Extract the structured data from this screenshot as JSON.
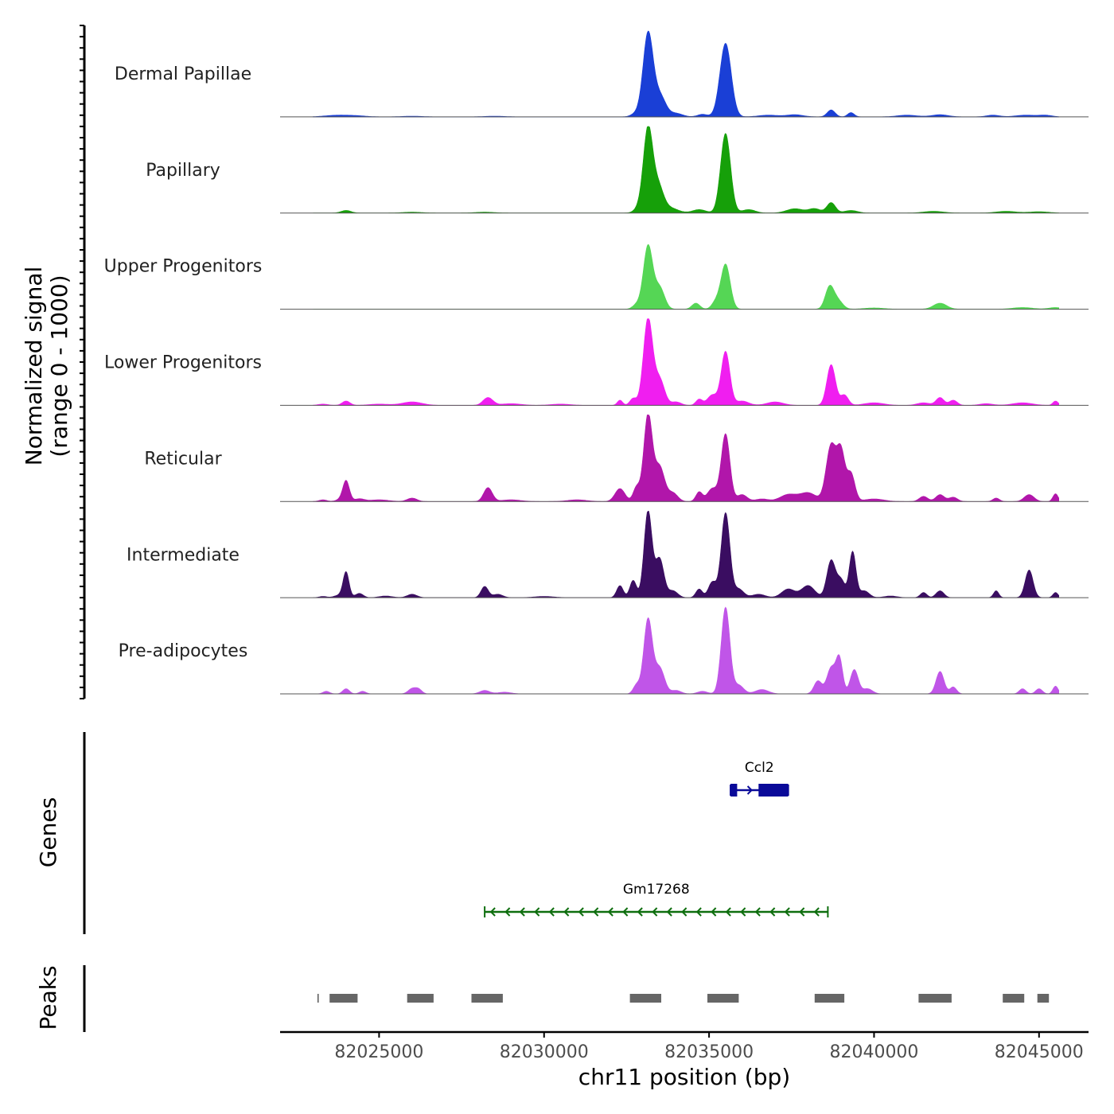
{
  "chart_data": {
    "type": "area",
    "chromosome": "chr11",
    "xlim": [
      82022000,
      82046500
    ],
    "xlabel": "chr11 position (bp)",
    "x_ticks": [
      82025000,
      82030000,
      82035000,
      82040000,
      82045000
    ],
    "x_tick_labels": [
      "82025000",
      "82030000",
      "82035000",
      "82040000",
      "82045000"
    ],
    "coverage": {
      "ylabel_line1": "Normalized signal",
      "ylabel_line2": "(range 0 - 1000)",
      "ylim": [
        0,
        1000
      ],
      "series": [
        {
          "name": "Dermal Papillae",
          "color": "#1a3fd6",
          "peaks": [
            [
              82023700,
              18,
              350
            ],
            [
              82024300,
              12,
              300
            ],
            [
              82026000,
              8,
              300
            ],
            [
              82028500,
              8,
              300
            ],
            [
              82032800,
              40,
              150
            ],
            [
              82033150,
              950,
              150
            ],
            [
              82033500,
              250,
              180
            ],
            [
              82034000,
              40,
              200
            ],
            [
              82034800,
              30,
              150
            ],
            [
              82035500,
              850,
              170
            ],
            [
              82036800,
              20,
              300
            ],
            [
              82037600,
              25,
              250
            ],
            [
              82038700,
              80,
              120
            ],
            [
              82039300,
              50,
              100
            ],
            [
              82041000,
              20,
              300
            ],
            [
              82042000,
              25,
              250
            ],
            [
              82043600,
              20,
              200
            ],
            [
              82044600,
              20,
              300
            ],
            [
              82045200,
              18,
              200
            ]
          ]
        },
        {
          "name": "Papillary",
          "color": "#16a009",
          "peaks": [
            [
              82024000,
              30,
              150
            ],
            [
              82026000,
              10,
              300
            ],
            [
              82028200,
              10,
              300
            ],
            [
              82032900,
              60,
              150
            ],
            [
              82033150,
              950,
              140
            ],
            [
              82033450,
              300,
              160
            ],
            [
              82033800,
              60,
              250
            ],
            [
              82034700,
              40,
              200
            ],
            [
              82035500,
              920,
              150
            ],
            [
              82036200,
              40,
              200
            ],
            [
              82037600,
              50,
              250
            ],
            [
              82038200,
              50,
              180
            ],
            [
              82038700,
              120,
              130
            ],
            [
              82039300,
              30,
              200
            ],
            [
              82041800,
              20,
              300
            ],
            [
              82044000,
              20,
              300
            ],
            [
              82045000,
              15,
              300
            ]
          ]
        },
        {
          "name": "Upper Progenitors",
          "color": "#55d655",
          "peaks": [
            [
              82032800,
              50,
              120
            ],
            [
              82033150,
              730,
              140
            ],
            [
              82033500,
              250,
              150
            ],
            [
              82034600,
              70,
              120
            ],
            [
              82035200,
              80,
              120
            ],
            [
              82035500,
              520,
              140
            ],
            [
              82038650,
              250,
              130
            ],
            [
              82038900,
              100,
              150
            ],
            [
              82040000,
              15,
              300
            ],
            [
              82042000,
              70,
              200
            ],
            [
              82044500,
              20,
              300
            ],
            [
              82045500,
              20,
              200
            ]
          ]
        },
        {
          "name": "Lower Progenitors",
          "color": "#f01ef0",
          "peaks": [
            [
              82023300,
              15,
              150
            ],
            [
              82024000,
              50,
              120
            ],
            [
              82025000,
              15,
              300
            ],
            [
              82026000,
              40,
              300
            ],
            [
              82028300,
              90,
              150
            ],
            [
              82029000,
              20,
              300
            ],
            [
              82030500,
              15,
              300
            ],
            [
              82032300,
              60,
              80
            ],
            [
              82032700,
              80,
              100
            ],
            [
              82033150,
              1000,
              140
            ],
            [
              82033500,
              300,
              150
            ],
            [
              82034000,
              40,
              150
            ],
            [
              82034700,
              70,
              100
            ],
            [
              82035100,
              120,
              150
            ],
            [
              82035500,
              620,
              130
            ],
            [
              82036000,
              50,
              200
            ],
            [
              82037000,
              40,
              250
            ],
            [
              82038700,
              470,
              130
            ],
            [
              82039100,
              120,
              120
            ],
            [
              82040000,
              30,
              300
            ],
            [
              82041500,
              30,
              200
            ],
            [
              82042000,
              90,
              120
            ],
            [
              82042400,
              60,
              120
            ],
            [
              82043400,
              20,
              200
            ],
            [
              82044500,
              30,
              300
            ],
            [
              82045500,
              50,
              80
            ]
          ]
        },
        {
          "name": "Reticular",
          "color": "#b116aa",
          "peaks": [
            [
              82023300,
              20,
              120
            ],
            [
              82023800,
              20,
              120
            ],
            [
              82024000,
              240,
              100
            ],
            [
              82024400,
              30,
              150
            ],
            [
              82025000,
              20,
              300
            ],
            [
              82026000,
              40,
              150
            ],
            [
              82028300,
              160,
              130
            ],
            [
              82029000,
              20,
              300
            ],
            [
              82031000,
              20,
              300
            ],
            [
              82032300,
              150,
              150
            ],
            [
              82032800,
              160,
              100
            ],
            [
              82033150,
              1000,
              130
            ],
            [
              82033500,
              400,
              150
            ],
            [
              82033900,
              100,
              150
            ],
            [
              82034700,
              110,
              100
            ],
            [
              82035100,
              150,
              150
            ],
            [
              82035500,
              780,
              130
            ],
            [
              82036000,
              80,
              150
            ],
            [
              82036600,
              30,
              200
            ],
            [
              82037400,
              80,
              250
            ],
            [
              82038000,
              100,
              250
            ],
            [
              82038700,
              650,
              150
            ],
            [
              82039000,
              550,
              120
            ],
            [
              82039300,
              320,
              120
            ],
            [
              82040000,
              30,
              300
            ],
            [
              82041500,
              60,
              130
            ],
            [
              82042000,
              80,
              130
            ],
            [
              82042400,
              50,
              130
            ],
            [
              82043700,
              40,
              100
            ],
            [
              82044700,
              80,
              150
            ],
            [
              82045500,
              90,
              80
            ]
          ]
        },
        {
          "name": "Intermediate",
          "color": "#3a0d61",
          "peaks": [
            [
              82023300,
              15,
              120
            ],
            [
              82023800,
              30,
              150
            ],
            [
              82024000,
              290,
              90
            ],
            [
              82024400,
              50,
              120
            ],
            [
              82025200,
              20,
              200
            ],
            [
              82026000,
              40,
              150
            ],
            [
              82028200,
              130,
              110
            ],
            [
              82028600,
              40,
              150
            ],
            [
              82030000,
              15,
              300
            ],
            [
              82032300,
              140,
              100
            ],
            [
              82032700,
              200,
              100
            ],
            [
              82033150,
              1000,
              120
            ],
            [
              82033500,
              450,
              130
            ],
            [
              82033900,
              80,
              150
            ],
            [
              82034700,
              100,
              100
            ],
            [
              82035100,
              180,
              120
            ],
            [
              82035500,
              980,
              130
            ],
            [
              82035900,
              100,
              150
            ],
            [
              82036500,
              40,
              200
            ],
            [
              82037400,
              100,
              200
            ],
            [
              82038000,
              140,
              200
            ],
            [
              82038700,
              430,
              130
            ],
            [
              82039000,
              200,
              120
            ],
            [
              82039350,
              530,
              100
            ],
            [
              82039700,
              80,
              150
            ],
            [
              82040500,
              20,
              200
            ],
            [
              82041500,
              60,
              100
            ],
            [
              82042000,
              80,
              120
            ],
            [
              82043700,
              80,
              80
            ],
            [
              82044700,
              320,
              120
            ],
            [
              82045500,
              60,
              80
            ]
          ]
        },
        {
          "name": "Pre-adipocytes",
          "color": "#c055e8",
          "peaks": [
            [
              82023400,
              30,
              100
            ],
            [
              82024000,
              60,
              100
            ],
            [
              82024500,
              30,
              100
            ],
            [
              82026000,
              60,
              120
            ],
            [
              82026200,
              50,
              100
            ],
            [
              82028200,
              40,
              150
            ],
            [
              82028800,
              20,
              200
            ],
            [
              82032800,
              100,
              100
            ],
            [
              82033150,
              860,
              130
            ],
            [
              82033500,
              300,
              150
            ],
            [
              82034000,
              40,
              150
            ],
            [
              82034800,
              30,
              150
            ],
            [
              82035500,
              1000,
              130
            ],
            [
              82035900,
              100,
              150
            ],
            [
              82036600,
              50,
              200
            ],
            [
              82038300,
              150,
              120
            ],
            [
              82038700,
              300,
              130
            ],
            [
              82038950,
              400,
              100
            ],
            [
              82039400,
              280,
              120
            ],
            [
              82039800,
              60,
              150
            ],
            [
              82042000,
              260,
              120
            ],
            [
              82042400,
              80,
              100
            ],
            [
              82044500,
              60,
              100
            ],
            [
              82045000,
              60,
              100
            ],
            [
              82045500,
              90,
              80
            ]
          ]
        }
      ]
    },
    "genes": {
      "label": "Genes",
      "items": [
        {
          "name": "Ccl2",
          "start": 82035650,
          "end": 82037400,
          "strand": "+",
          "color": "#0a0a99",
          "exons": [
            [
              82035650,
              82035850
            ],
            [
              82036500,
              82037400
            ]
          ]
        },
        {
          "name": "Gm17268",
          "start": 82028200,
          "end": 82038600,
          "strand": "-",
          "color": "#0e6e0e",
          "exons": []
        }
      ]
    },
    "peaks": {
      "label": "Peaks",
      "color": "#666666",
      "regions": [
        [
          82023130,
          82023170
        ],
        [
          82023500,
          82024350
        ],
        [
          82025850,
          82026650
        ],
        [
          82027800,
          82028750
        ],
        [
          82032600,
          82033550
        ],
        [
          82034950,
          82035900
        ],
        [
          82038200,
          82039100
        ],
        [
          82041350,
          82042350
        ],
        [
          82043900,
          82044550
        ],
        [
          82044950,
          82045300
        ]
      ]
    }
  }
}
